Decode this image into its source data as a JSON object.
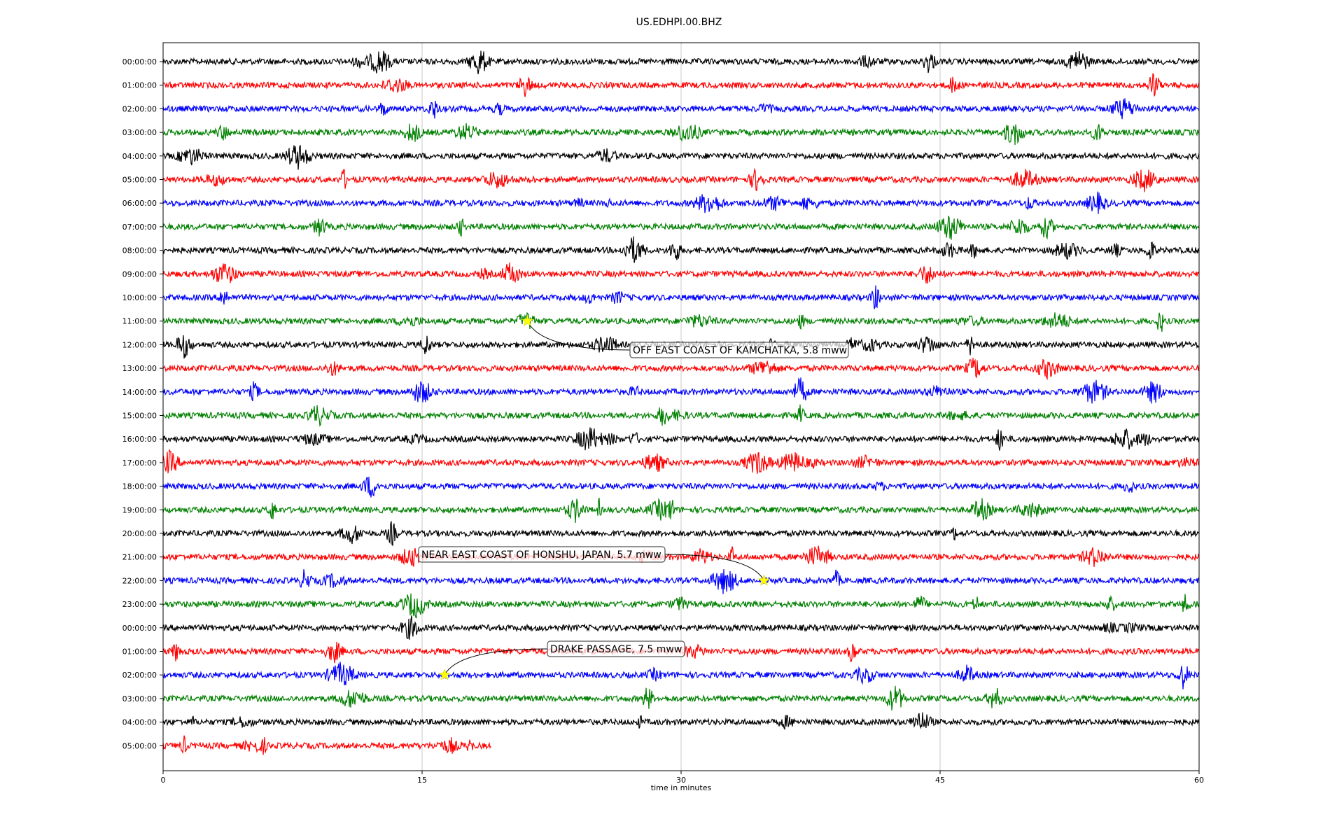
{
  "chart_data": {
    "type": "line",
    "title": "US.EDHPI.00.BHZ",
    "xlabel": "time in minutes",
    "xlim": [
      0,
      60
    ],
    "x_ticks": [
      0,
      15,
      30,
      45,
      60
    ],
    "x_tick_labels": [
      "0",
      "15",
      "30",
      "45",
      "60"
    ],
    "grid": "vertical",
    "colors": [
      "#000000",
      "#ff0000",
      "#0000ff",
      "#008000"
    ],
    "row_labels": [
      "00:00:00",
      "01:00:00",
      "02:00:00",
      "03:00:00",
      "04:00:00",
      "05:00:00",
      "06:00:00",
      "07:00:00",
      "08:00:00",
      "09:00:00",
      "10:00:00",
      "11:00:00",
      "12:00:00",
      "13:00:00",
      "14:00:00",
      "15:00:00",
      "16:00:00",
      "17:00:00",
      "18:00:00",
      "19:00:00",
      "20:00:00",
      "21:00:00",
      "22:00:00",
      "23:00:00",
      "00:00:00",
      "01:00:00",
      "02:00:00",
      "03:00:00",
      "04:00:00",
      "05:00:00"
    ],
    "last_row_end_minute": 19,
    "events": [
      {
        "row": 11,
        "minute": 21.1,
        "label": "OFF EAST COAST OF KAMCHATKA, 5.8 mww"
      },
      {
        "row": 22,
        "minute": 34.8,
        "label": "NEAR EAST COAST OF HONSHU, JAPAN, 5.7 mww"
      },
      {
        "row": 26,
        "minute": 16.3,
        "label": "DRAKE PASSAGE, 7.5 mww"
      }
    ]
  }
}
